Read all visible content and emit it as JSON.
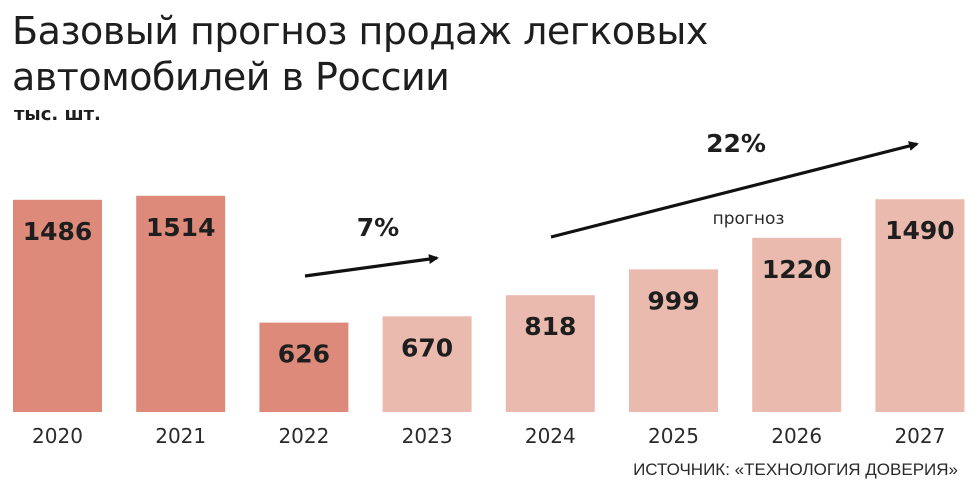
{
  "header": {
    "title": "Базовый прогноз продаж легковых автомобилей в России",
    "unit": "тыс. шт."
  },
  "footer": {
    "source": "ИСТОЧНИК: «ТЕХНОЛОГИЯ ДОВЕРИЯ»"
  },
  "colors": {
    "actual": "#dd8a7b",
    "forecast": "#ebbaae",
    "text": "#1e1e1e"
  },
  "chart_data": {
    "type": "bar",
    "categories": [
      "2020",
      "2021",
      "2022",
      "2023",
      "2024",
      "2025",
      "2026",
      "2027"
    ],
    "values": [
      1486,
      1514,
      626,
      670,
      818,
      999,
      1220,
      1490
    ],
    "ylim": [
      0,
      1600
    ],
    "forecast_label": "прогноз",
    "growth_annotations": [
      {
        "label": "7%",
        "from": "2022",
        "to": "2023"
      },
      {
        "label": "22%",
        "from": "2024",
        "to": "2027"
      }
    ],
    "title": "Базовый прогноз продаж легковых автомобилей в России",
    "ylabel": "тыс. шт.",
    "grid": false
  }
}
